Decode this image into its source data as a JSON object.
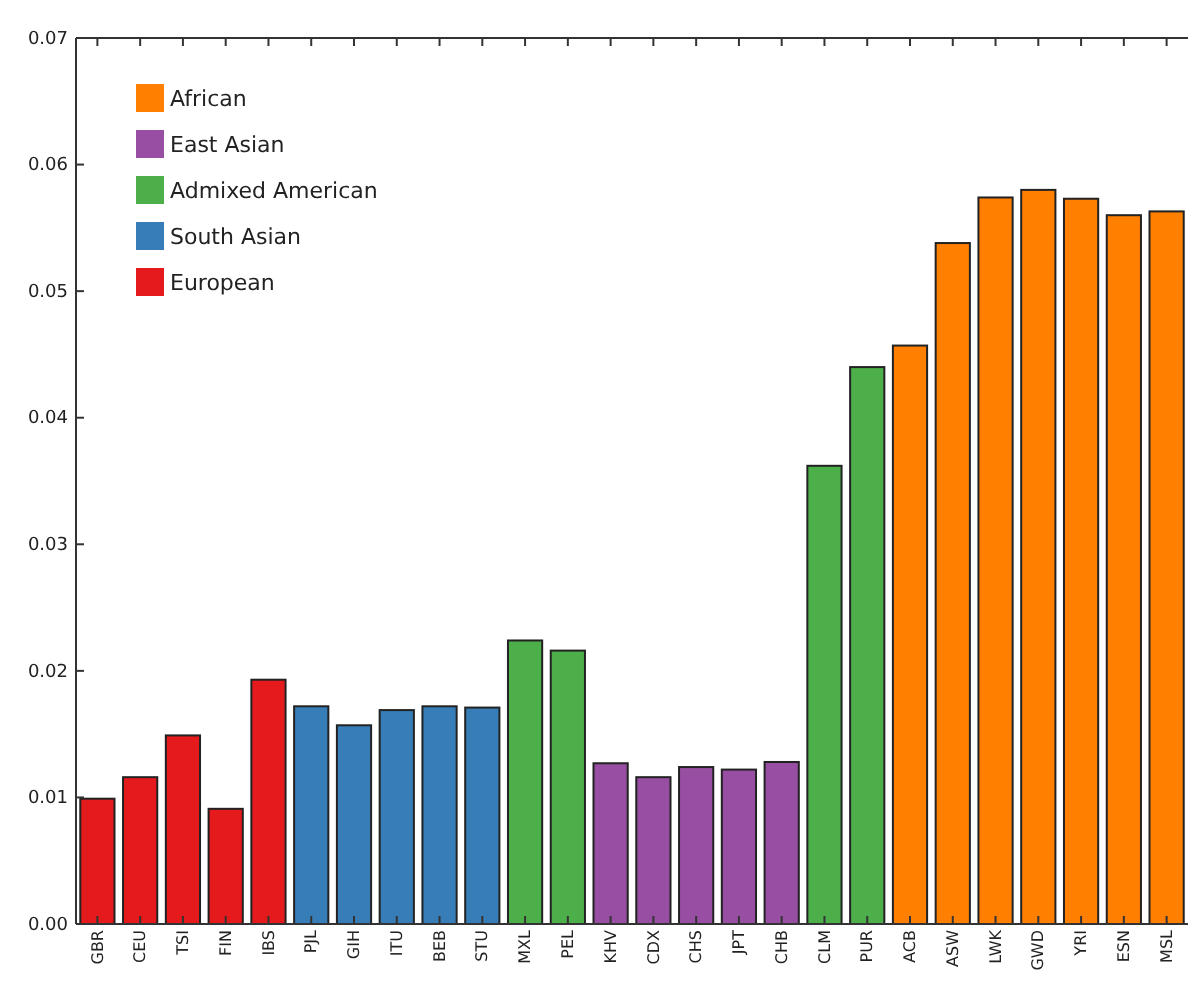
{
  "chart_data": {
    "type": "bar",
    "categories": [
      "GBR",
      "CEU",
      "TSI",
      "FIN",
      "IBS",
      "PJL",
      "GIH",
      "ITU",
      "BEB",
      "STU",
      "MXL",
      "PEL",
      "KHV",
      "CDX",
      "CHS",
      "JPT",
      "CHB",
      "CLM",
      "PUR",
      "ACB",
      "ASW",
      "LWK",
      "GWD",
      "YRI",
      "ESN",
      "MSL"
    ],
    "series": [
      {
        "name": "African",
        "color": "#ff7f00",
        "values": [
          null,
          null,
          null,
          null,
          null,
          null,
          null,
          null,
          null,
          null,
          null,
          null,
          null,
          null,
          null,
          null,
          null,
          null,
          null,
          0.0457,
          0.0538,
          0.0574,
          0.058,
          0.0573,
          0.056,
          0.0563
        ]
      },
      {
        "name": "East Asian",
        "color": "#984ea3",
        "values": [
          null,
          null,
          null,
          null,
          null,
          null,
          null,
          null,
          null,
          null,
          null,
          null,
          0.0127,
          0.0116,
          0.0124,
          0.0122,
          0.0128,
          null,
          null,
          null,
          null,
          null,
          null,
          null,
          null,
          null
        ]
      },
      {
        "name": "Admixed American",
        "color": "#4daf4a",
        "values": [
          null,
          null,
          null,
          null,
          null,
          null,
          null,
          null,
          null,
          null,
          0.0224,
          0.0216,
          null,
          null,
          null,
          null,
          null,
          0.0362,
          0.044,
          null,
          null,
          null,
          null,
          null,
          null,
          null
        ]
      },
      {
        "name": "South Asian",
        "color": "#377eb8",
        "values": [
          null,
          null,
          null,
          null,
          null,
          0.0172,
          0.0157,
          0.0169,
          0.0172,
          0.0171,
          null,
          null,
          null,
          null,
          null,
          null,
          null,
          null,
          null,
          null,
          null,
          null,
          null,
          null,
          null,
          null
        ]
      },
      {
        "name": "European",
        "color": "#e41a1c",
        "values": [
          0.0099,
          0.0116,
          0.0149,
          0.0091,
          0.0193,
          null,
          null,
          null,
          null,
          null,
          null,
          null,
          null,
          null,
          null,
          null,
          null,
          null,
          null,
          null,
          null,
          null,
          null,
          null,
          null,
          null
        ]
      }
    ],
    "ylim": [
      0,
      0.07
    ],
    "yticks": [
      {
        "value": 0,
        "label": "0.00"
      },
      {
        "value": 0.01,
        "label": "0.01"
      },
      {
        "value": 0.02,
        "label": "0.02"
      },
      {
        "value": 0.03,
        "label": "0.03"
      },
      {
        "value": 0.04,
        "label": "0.04"
      },
      {
        "value": 0.05,
        "label": "0.05"
      },
      {
        "value": 0.06,
        "label": "0.06"
      },
      {
        "value": 0.07,
        "label": "0.07"
      }
    ],
    "grid": false,
    "legend": "top left"
  }
}
